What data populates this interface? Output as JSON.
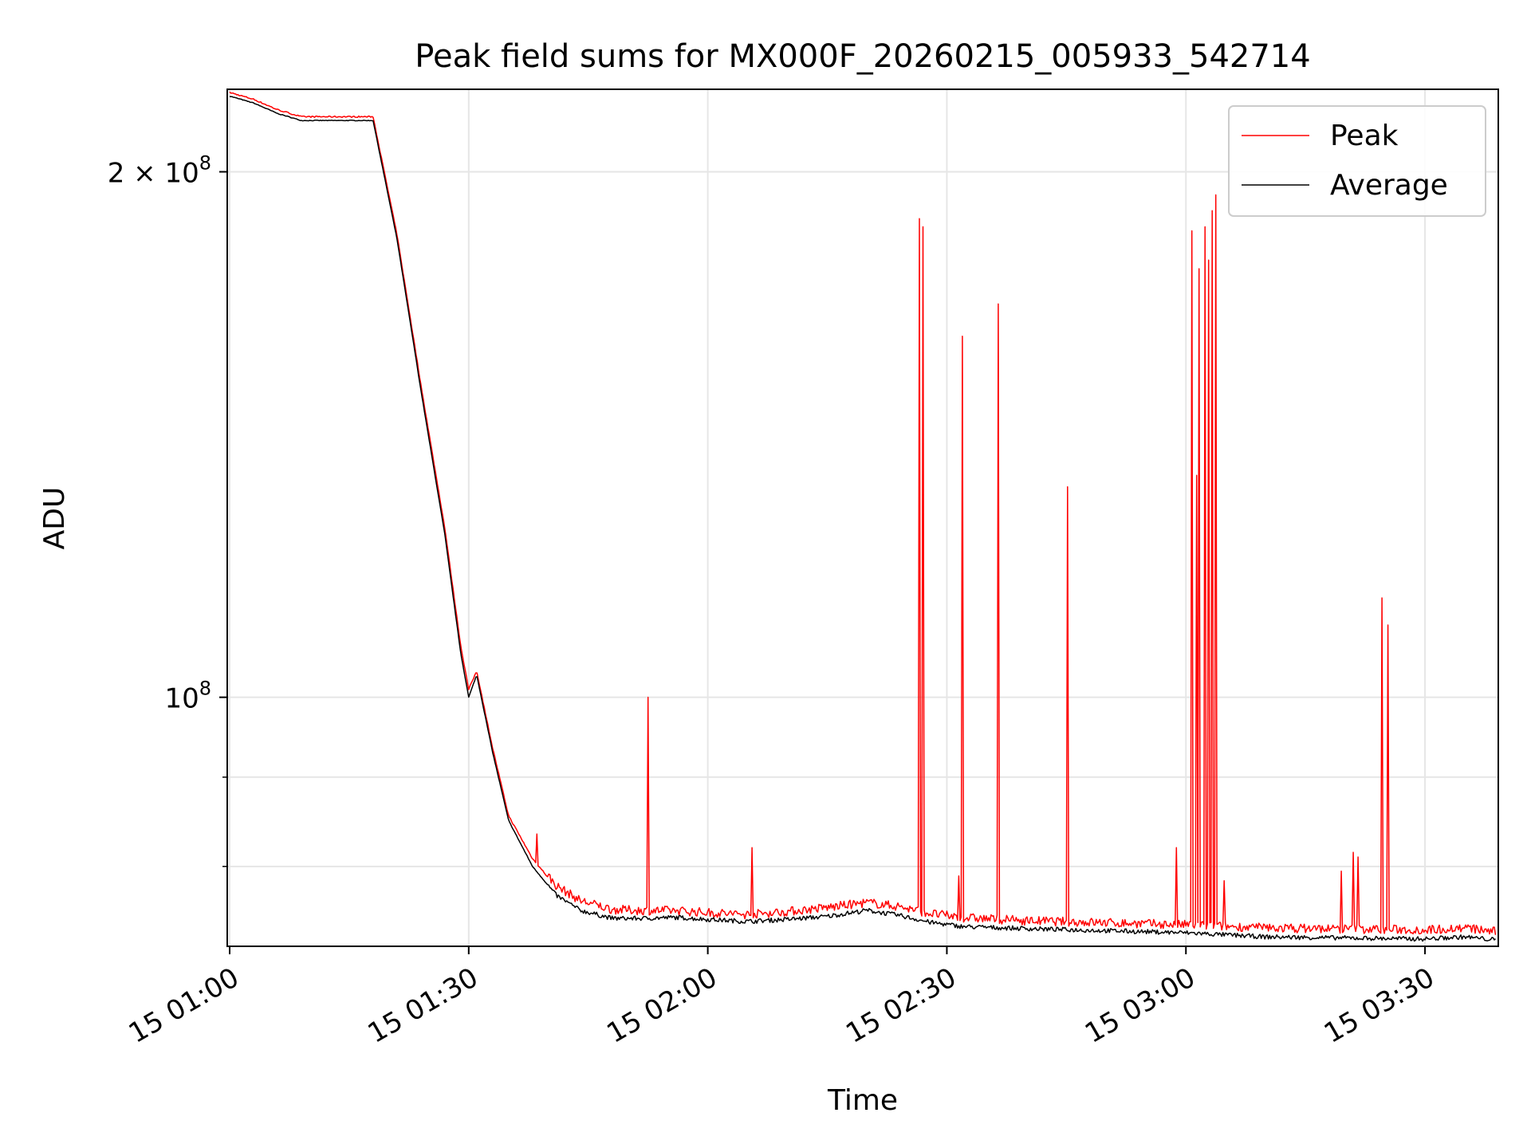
{
  "chart_data": {
    "type": "line",
    "title": "Peak field sums for MX000F_20260215_005933_542714",
    "xlabel": "Time",
    "ylabel": "ADU",
    "yscale": "log",
    "xlim_minutes": [
      -0.3,
      159.2
    ],
    "ylim": [
      72000000,
      223000000
    ],
    "x_ticks": [
      {
        "minute": 0,
        "label": "15 01:00"
      },
      {
        "minute": 30,
        "label": "15 01:30"
      },
      {
        "minute": 60,
        "label": "15 02:00"
      },
      {
        "minute": 90,
        "label": "15 02:30"
      },
      {
        "minute": 120,
        "label": "15 03:00"
      },
      {
        "minute": 150,
        "label": "15 03:30"
      }
    ],
    "y_ticks": [
      {
        "value": 200000000,
        "base": "2 × 10",
        "exp": "8"
      },
      {
        "value": 100000000,
        "base": "10",
        "exp": "8"
      }
    ],
    "y_minor_ticks": [
      80000000,
      90000000
    ],
    "grid": true,
    "legend_position": "top-right",
    "colors": {
      "peak": "#ff0000",
      "average": "#000000",
      "grid": "#e6e6e6"
    },
    "baseline_series": [
      {
        "name": "Average",
        "minute": [
          0,
          3,
          6,
          9,
          12,
          15,
          18,
          21,
          24,
          27,
          29,
          30,
          31,
          33,
          35,
          38,
          41,
          44,
          48,
          52,
          56,
          60,
          65,
          70,
          75,
          80,
          84,
          88,
          92,
          100,
          110,
          120,
          130,
          140,
          150,
          155,
          159
        ],
        "value": [
          221000000,
          219000000,
          216000000,
          214000000,
          214000000,
          214000000,
          214000000,
          183000000,
          150000000,
          124000000,
          106000000,
          100000000,
          103000000,
          93000000,
          85000000,
          80000000,
          77000000,
          75500000,
          74700000,
          74700000,
          74800000,
          74600000,
          74400000,
          74600000,
          74900000,
          75500000,
          75000000,
          74300000,
          73900000,
          73700000,
          73500000,
          73300000,
          72900000,
          72800000,
          72700000,
          72900000,
          72600000
        ]
      },
      {
        "name": "Peak",
        "minute": [
          0,
          3,
          6,
          9,
          12,
          15,
          18,
          21,
          24,
          27,
          29,
          30,
          31,
          33,
          35,
          38,
          41,
          44,
          48,
          52,
          56,
          60,
          65,
          70,
          75,
          80,
          84,
          88,
          92,
          100,
          110,
          120,
          130,
          140,
          150,
          155,
          159
        ],
        "value": [
          222000000,
          220000000,
          217000000,
          215000000,
          215000000,
          215000000,
          215000000,
          184000000,
          151000000,
          125000000,
          107000000,
          101000000,
          103500000,
          93500000,
          85500000,
          80800000,
          77800000,
          76300000,
          75400000,
          75300000,
          75300000,
          75100000,
          74900000,
          75200000,
          75600000,
          76100000,
          75700000,
          75000000,
          74600000,
          74300000,
          74100000,
          73900000,
          73600000,
          73500000,
          73400000,
          73600000,
          73200000
        ]
      }
    ],
    "peak_spikes": [
      {
        "minute": 38.5,
        "value": 83500000
      },
      {
        "minute": 52.5,
        "value": 100000000
      },
      {
        "minute": 65.5,
        "value": 82000000
      },
      {
        "minute": 86.5,
        "value": 188000000
      },
      {
        "minute": 87.0,
        "value": 186000000
      },
      {
        "minute": 91.5,
        "value": 79000000
      },
      {
        "minute": 92.0,
        "value": 161000000
      },
      {
        "minute": 96.5,
        "value": 168000000
      },
      {
        "minute": 105.2,
        "value": 132000000
      },
      {
        "minute": 118.8,
        "value": 82000000
      },
      {
        "minute": 120.8,
        "value": 185000000
      },
      {
        "minute": 121.3,
        "value": 134000000
      },
      {
        "minute": 121.6,
        "value": 176000000
      },
      {
        "minute": 122.4,
        "value": 186000000
      },
      {
        "minute": 122.8,
        "value": 178000000
      },
      {
        "minute": 123.3,
        "value": 190000000
      },
      {
        "minute": 123.7,
        "value": 194000000
      },
      {
        "minute": 124.8,
        "value": 78500000
      },
      {
        "minute": 139.5,
        "value": 79500000
      },
      {
        "minute": 141.0,
        "value": 81500000
      },
      {
        "minute": 141.6,
        "value": 81000000
      },
      {
        "minute": 144.6,
        "value": 114000000
      },
      {
        "minute": 145.3,
        "value": 110000000
      }
    ],
    "series": [
      {
        "name": "Peak",
        "color": "#ff0000"
      },
      {
        "name": "Average",
        "color": "#000000"
      }
    ]
  }
}
